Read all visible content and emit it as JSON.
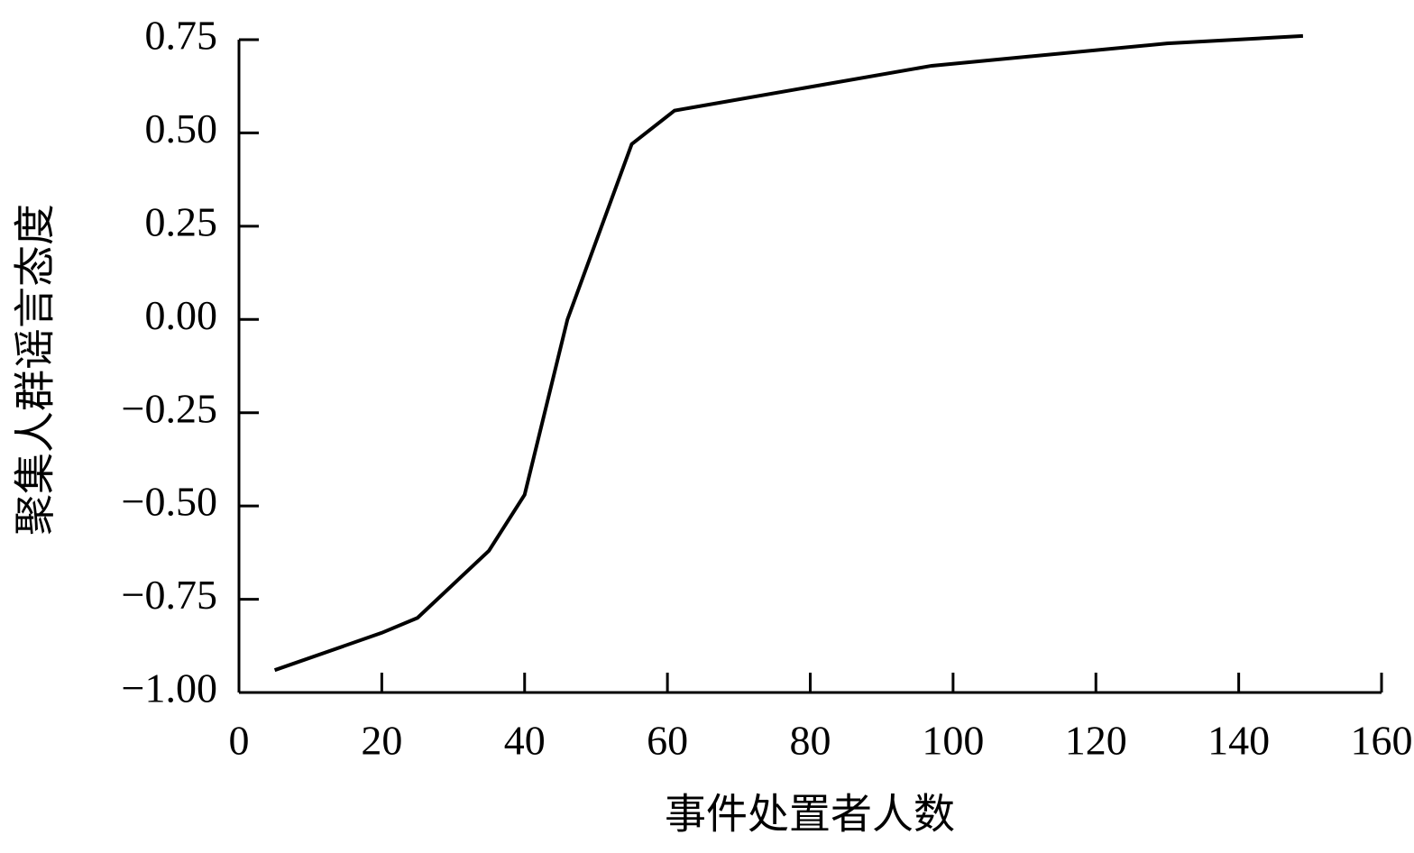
{
  "chart_data": {
    "type": "line",
    "xlabel": "事件处置者人数",
    "ylabel": "聚集人群谣言态度",
    "x": [
      5,
      20,
      25,
      35,
      40,
      46,
      55,
      61,
      97,
      130,
      149
    ],
    "series": [
      {
        "color": "#000000",
        "values": [
          -0.94,
          -0.84,
          -0.8,
          -0.62,
          -0.47,
          0.0,
          0.47,
          0.56,
          0.68,
          0.74,
          0.76
        ]
      }
    ],
    "xlim": [
      0,
      160
    ],
    "xticks": [
      0,
      20,
      40,
      60,
      80,
      100,
      120,
      140,
      160
    ],
    "ylim": [
      -1,
      0.75
    ],
    "yticks": [
      {
        "value": -1,
        "label": "−1.00"
      },
      {
        "value": -0.75,
        "label": "−0.75"
      },
      {
        "value": -0.5,
        "label": "−0.50"
      },
      {
        "value": -0.25,
        "label": "−0.25"
      },
      {
        "value": 0,
        "label": "0.00"
      },
      {
        "value": 0.25,
        "label": "0.25"
      },
      {
        "value": 0.5,
        "label": "0.50"
      },
      0.75
    ],
    "grid": false
  }
}
